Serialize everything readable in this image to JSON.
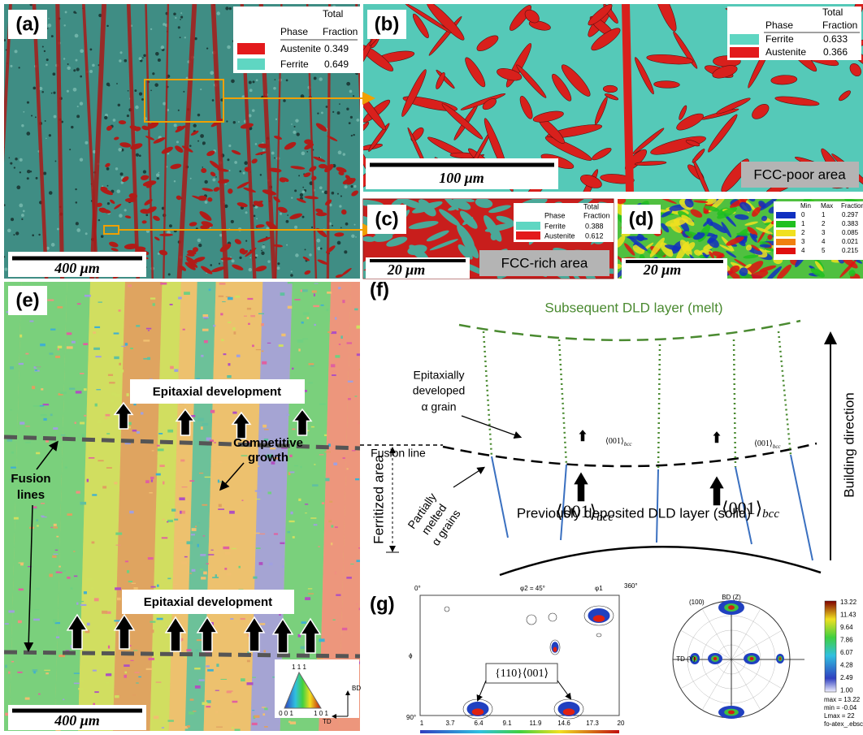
{
  "a": {
    "label": "(a)",
    "legend": {
      "header": [
        "Total",
        "Phase",
        "Fraction"
      ],
      "rows": [
        [
          "Austenite",
          "0.349"
        ],
        [
          "Ferrite",
          "0.649"
        ]
      ],
      "colors": [
        "#e31a1c",
        "#5fd6c2"
      ]
    },
    "scale_bar": "400 μm"
  },
  "b": {
    "label": "(b)",
    "legend": {
      "header": [
        "Total",
        "Phase",
        "Fraction"
      ],
      "rows": [
        [
          "Ferrite",
          "0.633"
        ],
        [
          "Austenite",
          "0.366"
        ]
      ],
      "colors": [
        "#5fd6c2",
        "#e31a1c"
      ]
    },
    "scale_bar": "100 μm",
    "note": "FCC-poor area"
  },
  "c": {
    "label": "(c)",
    "legend": {
      "header": [
        "Total",
        "Phase",
        "Fraction"
      ],
      "rows": [
        [
          "Ferrite",
          "0.388"
        ],
        [
          "Austenite",
          "0.612"
        ]
      ],
      "colors": [
        "#5fd6c2",
        "#e31a1c"
      ]
    },
    "scale_bar": "20 μm",
    "note": "FCC-rich area"
  },
  "d": {
    "label": "(d)",
    "legend": {
      "header": [
        "Min",
        "Max",
        "Fraction"
      ],
      "rows": [
        [
          "0",
          "1",
          "0.297"
        ],
        [
          "1",
          "2",
          "0.383"
        ],
        [
          "2",
          "3",
          "0.085"
        ],
        [
          "3",
          "4",
          "0.021"
        ],
        [
          "4",
          "5",
          "0.215"
        ]
      ],
      "colors": [
        "#1030c0",
        "#20c020",
        "#f0e020",
        "#f08010",
        "#e01010"
      ]
    },
    "scale_bar": "20 μm"
  },
  "e": {
    "label": "(e)",
    "top_note": "Epitaxial development",
    "bottom_note": "Epitaxial development",
    "competitive": [
      "Competitive",
      "growth"
    ],
    "fusion": [
      "Fusion",
      "lines"
    ],
    "scale_bar": "400 μm",
    "ipf": [
      "1 1 1",
      "0 0 1",
      "1 0 1"
    ],
    "axes": [
      "BD",
      "TD"
    ]
  },
  "f": {
    "label": "(f)",
    "melt": "Subsequent DLD layer (melt)",
    "epitaxial": [
      "Epitaxially",
      "developed",
      "α grain"
    ],
    "fusion_line": "Fusion line",
    "direction_small": {
      "base": "⟨001⟩",
      "sub": "bcc"
    },
    "direction_large": {
      "base": "⟨001⟩",
      "sub": "bcc"
    },
    "ferritized": "Ferritized area",
    "partial": [
      "Partially",
      "melted",
      "α grains"
    ],
    "solid": "Previously deposited DLD layer (solid)",
    "building": "Building direction"
  },
  "g": {
    "label": "(g)",
    "odf": {
      "top": [
        "0°",
        "φ2 = 45°",
        "φ1",
        "360°"
      ],
      "left": [
        "ϕ",
        "90°"
      ],
      "texture": "{110}⟨001⟩",
      "scale": [
        "1",
        "3.7",
        "6.4",
        "9.1",
        "11.9",
        "14.6",
        "17.3",
        "20"
      ]
    },
    "pole": {
      "plane": "(100)",
      "bd": "BD (Z)",
      "td": "TD (Y)",
      "scale": [
        "13.22",
        "11.43",
        "9.64",
        "7.86",
        "6.07",
        "4.28",
        "2.49",
        "1.00"
      ],
      "stats": [
        "max = 13.22",
        "min = -0.04",
        "Lmax = 22",
        "fo-atex_.ebsc"
      ]
    }
  }
}
